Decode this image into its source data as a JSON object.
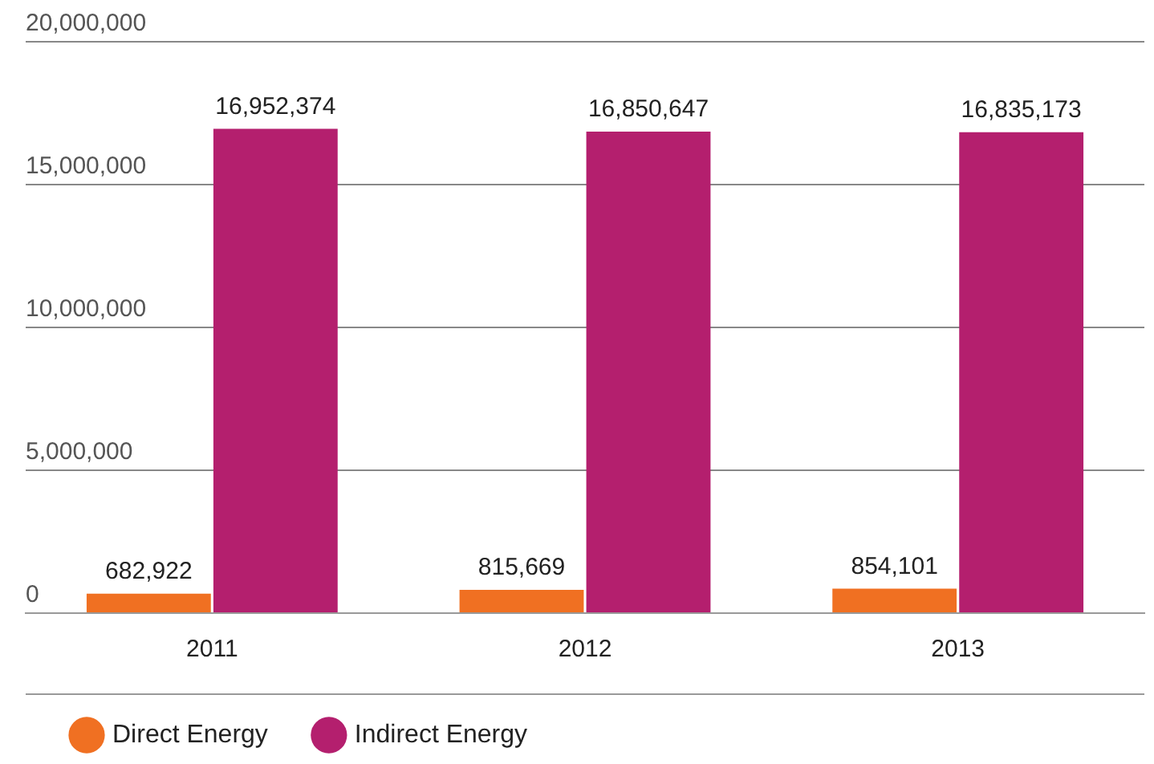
{
  "chart_data": {
    "type": "bar",
    "categories": [
      "2011",
      "2012",
      "2013"
    ],
    "series": [
      {
        "name": "Direct Energy",
        "color": "#f07022",
        "values": [
          682922,
          815669,
          854101
        ],
        "value_labels": [
          "682,922",
          "815,669",
          "854,101"
        ]
      },
      {
        "name": "Indirect Energy",
        "color": "#b41f6e",
        "values": [
          16952374,
          16850647,
          16835173
        ],
        "value_labels": [
          "16,952,374",
          "16,850,647",
          "16,835,173"
        ]
      }
    ],
    "ylim": [
      0,
      20000000
    ],
    "yticks": [
      {
        "value": 0,
        "label": "0"
      },
      {
        "value": 5000000,
        "label": "5,000,000"
      },
      {
        "value": 10000000,
        "label": "10,000,000"
      },
      {
        "value": 15000000,
        "label": "15,000,000"
      },
      {
        "value": 20000000,
        "label": "20,000,000"
      }
    ],
    "grid": "y",
    "legend": "bottom"
  }
}
